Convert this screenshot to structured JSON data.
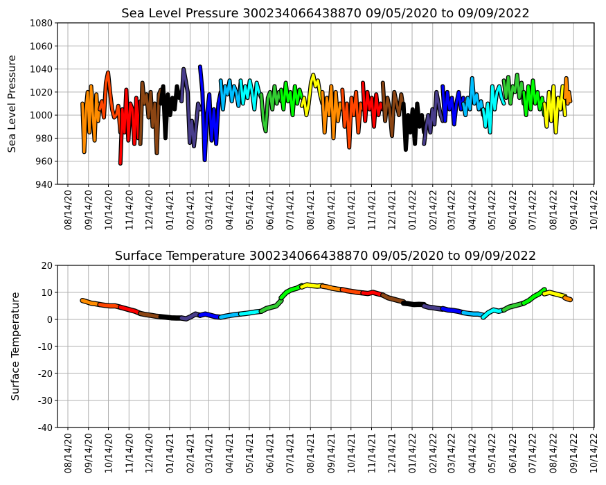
{
  "chart_data": [
    {
      "type": "line",
      "title": "Sea Level Pressure 300234066438870  09/05/2020 to 09/09/2022",
      "xlabel": "",
      "ylabel": "Sea Level Pressure",
      "ylim": [
        940,
        1080
      ],
      "yticks": [
        940,
        960,
        980,
        1000,
        1020,
        1040,
        1060,
        1080
      ],
      "grid": true,
      "series_key": "pressure"
    },
    {
      "type": "line",
      "title": "Surface Temperature 300234066438870  09/05/2020 to 09/09/2022",
      "xlabel": "",
      "ylabel": "Surface Temperature",
      "ylim": [
        -40,
        20
      ],
      "yticks": [
        -40,
        -30,
        -20,
        -10,
        0,
        10,
        20
      ],
      "grid": true,
      "series_key": "temperature"
    }
  ],
  "x_axis": {
    "start": "2020-08-14",
    "end": "2022-10-14",
    "ticks": [
      "08/14/20",
      "09/14/20",
      "10/14/20",
      "11/14/20",
      "12/14/20",
      "01/14/21",
      "02/14/21",
      "03/14/21",
      "04/14/21",
      "05/14/21",
      "06/14/21",
      "07/14/21",
      "08/14/21",
      "09/14/21",
      "10/14/21",
      "11/14/21",
      "12/14/21",
      "01/14/22",
      "02/14/22",
      "03/14/22",
      "04/14/22",
      "05/14/22",
      "06/14/22",
      "07/14/22",
      "08/14/22",
      "09/14/22",
      "10/14/22"
    ],
    "tick_dates": [
      "2020-08-14",
      "2020-09-14",
      "2020-10-14",
      "2020-11-14",
      "2020-12-14",
      "2021-01-14",
      "2021-02-14",
      "2021-03-14",
      "2021-04-14",
      "2021-05-14",
      "2021-06-14",
      "2021-07-14",
      "2021-08-14",
      "2021-09-14",
      "2021-10-14",
      "2021-11-14",
      "2021-12-14",
      "2022-01-14",
      "2022-02-14",
      "2022-03-14",
      "2022-04-14",
      "2022-05-14",
      "2022-06-14",
      "2022-07-14",
      "2022-08-14",
      "2022-09-14",
      "2022-10-14"
    ]
  },
  "segments": [
    {
      "start": "2020-09-05",
      "end": "2020-10-01",
      "color": "#ff8c00",
      "pressure": [
        1010,
        968,
        1005,
        1020,
        985,
        1025,
        1000,
        978,
        1018,
        995,
        1010
      ],
      "temperature": [
        7,
        6.5,
        6,
        5.8,
        5.5
      ]
    },
    {
      "start": "2020-10-01",
      "end": "2020-11-01",
      "color": "#ff4500",
      "pressure": [
        1005,
        1012,
        998,
        1028,
        1037,
        1020,
        1005,
        998,
        1000,
        1008,
        985
      ],
      "temperature": [
        5.5,
        5.2,
        5,
        5,
        4.5
      ]
    },
    {
      "start": "2020-11-01",
      "end": "2020-12-01",
      "color": "#ff0000",
      "pressure": [
        958,
        1005,
        985,
        1022,
        978,
        1010,
        1005,
        975,
        1015,
        980,
        1012
      ],
      "temperature": [
        4.5,
        4,
        3.5,
        3,
        2.2
      ]
    },
    {
      "start": "2020-12-01",
      "end": "2021-01-01",
      "color": "#8b4513",
      "pressure": [
        975,
        1028,
        1010,
        1018,
        998,
        1020,
        990,
        1010,
        967,
        1018,
        1022
      ],
      "temperature": [
        2.2,
        1.8,
        1.5,
        1.2,
        1
      ]
    },
    {
      "start": "2021-01-01",
      "end": "2021-02-01",
      "color": "#000000",
      "pressure": [
        1010,
        1025,
        980,
        1018,
        1000,
        1015,
        1005,
        1025,
        1015,
        1020
      ],
      "temperature": [
        1,
        0.8,
        0.6,
        0.5,
        0.5
      ]
    },
    {
      "start": "2021-02-01",
      "end": "2021-03-01",
      "color": "#483d8b",
      "pressure": [
        1012,
        1040,
        1030,
        1020,
        976,
        995,
        973,
        990,
        1010,
        1005
      ],
      "temperature": [
        0.5,
        0.2,
        1,
        2,
        1.5
      ]
    },
    {
      "start": "2021-03-01",
      "end": "2021-04-01",
      "color": "#0000ff",
      "pressure": [
        1042,
        1020,
        961,
        1000,
        1018,
        978,
        1005,
        975,
        1010,
        1020
      ],
      "temperature": [
        1.5,
        2,
        1.5,
        1,
        0.8
      ]
    },
    {
      "start": "2021-04-01",
      "end": "2021-05-01",
      "color": "#00bfff",
      "pressure": [
        1030,
        1005,
        1025,
        1018,
        1030,
        1012,
        1025,
        1020,
        1008,
        1028
      ],
      "temperature": [
        0.8,
        1.2,
        1.5,
        1.8,
        2
      ]
    },
    {
      "start": "2021-05-01",
      "end": "2021-06-01",
      "color": "#00ffff",
      "pressure": [
        1030,
        1010,
        1025,
        1015,
        1030,
        1020,
        1005,
        1028,
        1020,
        1015
      ],
      "temperature": [
        2,
        2.2,
        2.5,
        2.8,
        3
      ]
    },
    {
      "start": "2021-06-01",
      "end": "2021-07-01",
      "color": "#32cd32",
      "pressure": [
        1018,
        995,
        986,
        1015,
        1020,
        1005,
        1025,
        1010,
        1020,
        1012
      ],
      "temperature": [
        3,
        4,
        4.5,
        5,
        7
      ]
    },
    {
      "start": "2021-07-01",
      "end": "2021-08-01",
      "color": "#00ff00",
      "pressure": [
        1022,
        1005,
        1028,
        1012,
        1020,
        1000,
        1025,
        1010,
        1022,
        1015
      ],
      "temperature": [
        8,
        10,
        11,
        11.5,
        12.5
      ]
    },
    {
      "start": "2021-08-01",
      "end": "2021-09-01",
      "color": "#ffff00",
      "pressure": [
        1008,
        1015,
        1000,
        1010,
        1028,
        1035,
        1025,
        1030,
        1018,
        1010
      ],
      "temperature": [
        12,
        12.8,
        12.5,
        12.3,
        12.5
      ]
    },
    {
      "start": "2021-09-01",
      "end": "2021-10-01",
      "color": "#ff8c00",
      "pressure": [
        1020,
        985,
        1015,
        1000,
        1025,
        980,
        1020,
        995,
        1010,
        1005
      ],
      "temperature": [
        12.3,
        12,
        11.5,
        11.2,
        11
      ]
    },
    {
      "start": "2021-10-01",
      "end": "2021-11-01",
      "color": "#ff4500",
      "pressure": [
        1022,
        990,
        1010,
        972,
        1015,
        1000,
        1020,
        985,
        1010,
        1005
      ],
      "temperature": [
        11,
        10.6,
        10.3,
        10,
        9.8
      ]
    },
    {
      "start": "2021-11-01",
      "end": "2021-12-01",
      "color": "#ff0000",
      "pressure": [
        1028,
        995,
        1020,
        1005,
        1015,
        990,
        1018,
        1000,
        1010,
        1005
      ],
      "temperature": [
        9.8,
        9.6,
        10,
        9.5,
        9
      ]
    },
    {
      "start": "2021-12-01",
      "end": "2022-01-01",
      "color": "#8b4513",
      "pressure": [
        1028,
        995,
        1015,
        1005,
        982,
        1020,
        1010,
        1000,
        1018,
        1005
      ],
      "temperature": [
        9,
        8,
        7.5,
        7,
        6.5
      ]
    },
    {
      "start": "2022-01-01",
      "end": "2022-02-01",
      "color": "#000000",
      "pressure": [
        1010,
        970,
        1000,
        985,
        1005,
        975,
        1010,
        990,
        1000,
        985
      ],
      "temperature": [
        6,
        5.8,
        5.5,
        5.6,
        5.5
      ]
    },
    {
      "start": "2022-02-01",
      "end": "2022-03-01",
      "color": "#483d8b",
      "pressure": [
        975,
        990,
        1000,
        985,
        1005,
        992,
        1020,
        1010,
        1000,
        995
      ],
      "temperature": [
        5,
        4.5,
        4.3,
        4,
        3.8
      ]
    },
    {
      "start": "2022-03-01",
      "end": "2022-04-01",
      "color": "#0000ff",
      "pressure": [
        1025,
        995,
        1020,
        1005,
        1015,
        992,
        1010,
        1020,
        1005,
        1015
      ],
      "temperature": [
        4,
        3.5,
        3.3,
        3,
        2.5
      ]
    },
    {
      "start": "2022-04-01",
      "end": "2022-05-01",
      "color": "#00bfff",
      "pressure": [
        1010,
        1000,
        1015,
        1005,
        1032,
        1010,
        1018,
        1005,
        1012,
        1000
      ],
      "temperature": [
        2.5,
        2.2,
        2,
        2,
        1.5
      ]
    },
    {
      "start": "2022-05-01",
      "end": "2022-06-01",
      "color": "#00ffff",
      "pressure": [
        1005,
        990,
        1010,
        985,
        1025,
        1005,
        1020,
        1025,
        1015,
        1010
      ],
      "temperature": [
        0.8,
        2.5,
        3.5,
        3,
        3.5
      ]
    },
    {
      "start": "2022-06-01",
      "end": "2022-07-01",
      "color": "#32cd32",
      "pressure": [
        1030,
        1015,
        1033,
        1010,
        1025,
        1020,
        1035,
        1015,
        1028,
        1010
      ],
      "temperature": [
        3.5,
        4.5,
        5,
        5.5,
        6
      ]
    },
    {
      "start": "2022-07-01",
      "end": "2022-08-01",
      "color": "#00ff00",
      "pressure": [
        1020,
        1000,
        1025,
        1005,
        1030,
        1010,
        1020,
        1005,
        1015,
        1000
      ],
      "temperature": [
        6,
        7,
        8.5,
        9.5,
        11
      ]
    },
    {
      "start": "2022-08-01",
      "end": "2022-09-01",
      "color": "#ffff00",
      "pressure": [
        1010,
        990,
        1020,
        995,
        1025,
        985,
        1015,
        1005,
        1025,
        1000
      ],
      "temperature": [
        9.5,
        10,
        9.5,
        9,
        8.5
      ]
    },
    {
      "start": "2022-09-01",
      "end": "2022-09-09",
      "color": "#ff8c00",
      "pressure": [
        1015,
        1032,
        1010,
        1020,
        1012
      ],
      "temperature": [
        8,
        7.6,
        7.3
      ]
    }
  ]
}
